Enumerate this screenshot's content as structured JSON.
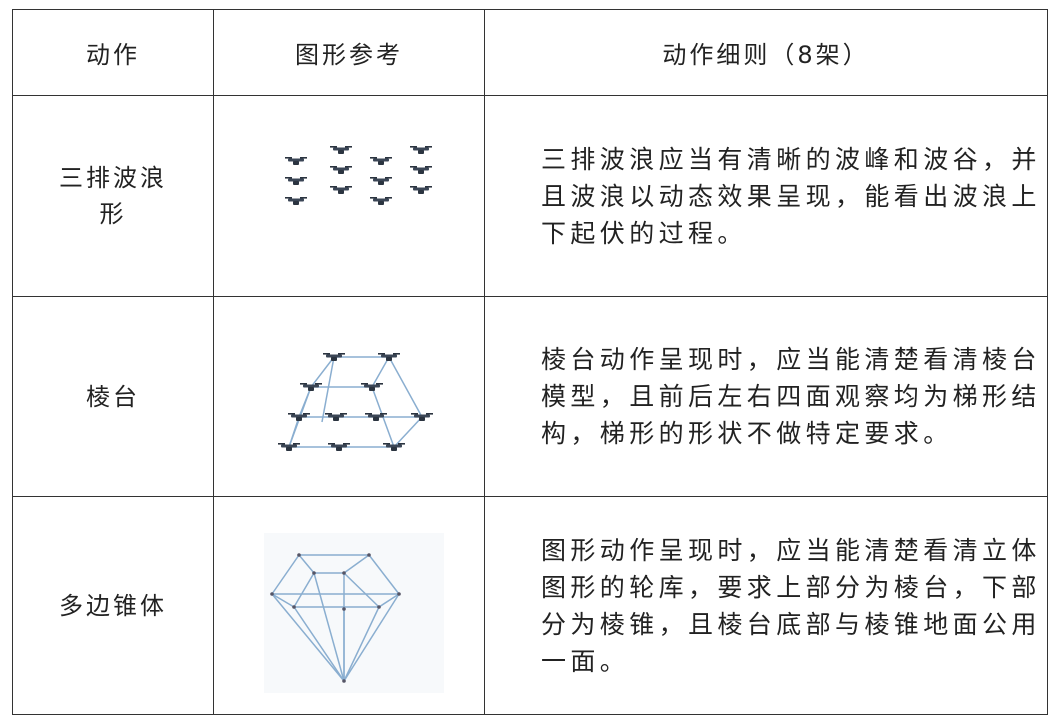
{
  "table": {
    "header": [
      "动作",
      "图形参考",
      "动作细则（8架）"
    ],
    "rows": [
      [
        "三排波浪形",
        "三排波浪应当有清晰的波峰和波谷，并且波浪以动态效果呈现，能看出波浪上下起伏的过程。"
      ],
      [
        "棱台",
        "棱台动作呈现时，应当能清楚看清棱台模型，且前后左右四面观察均为梯形结构，梯形的形状不做特定要求。"
      ],
      [
        "多边锥体",
        "图形动作呈现时，应当能清楚看清立体图形的轮库，要求上部分为棱台，下部分为棱锥，且棱台底部与棱锥地面公用一面。"
      ]
    ]
  }
}
